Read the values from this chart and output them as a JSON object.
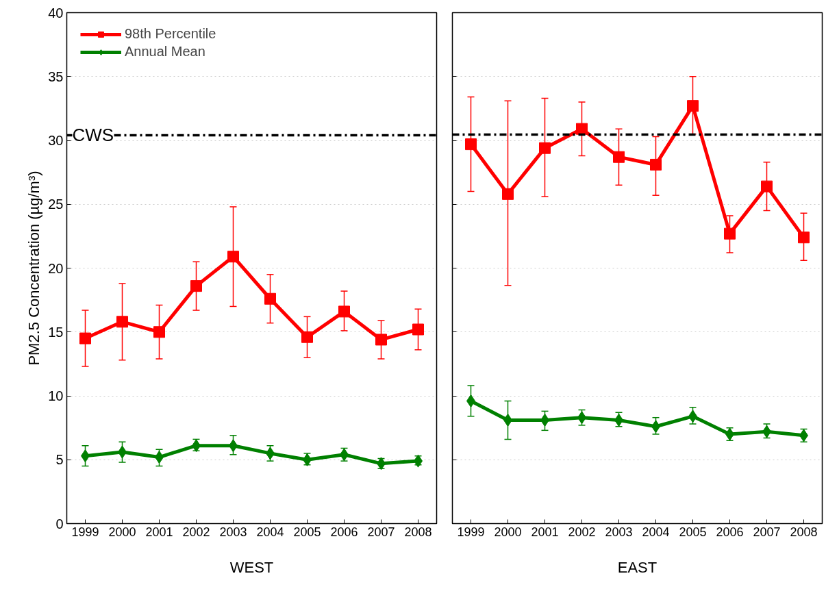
{
  "chart_data": [
    {
      "type": "line",
      "xlabel": "WEST",
      "ylabel": "PM2.5 Concentration (µg/m³)",
      "x": [
        1999,
        2000,
        2001,
        2002,
        2003,
        2004,
        2005,
        2006,
        2007,
        2008
      ],
      "xlim": [
        1998.5,
        2008.5
      ],
      "xticks": [
        1999,
        2000,
        2001,
        2002,
        2003,
        2004,
        2005,
        2006,
        2007,
        2008
      ],
      "ylim": [
        0,
        40
      ],
      "yticks": [
        0,
        5,
        10,
        15,
        20,
        25,
        30,
        35,
        40
      ],
      "grid": "y",
      "legend": "top left",
      "line_style": "solid",
      "series": [
        {
          "name": "98th Percentile",
          "color": "#ff0000",
          "marker": "square",
          "values": [
            14.5,
            15.8,
            15.0,
            18.6,
            20.9,
            17.6,
            14.6,
            16.6,
            14.4,
            15.2
          ],
          "errors": [
            [
              12.3,
              16.7
            ],
            [
              12.8,
              18.8
            ],
            [
              12.9,
              17.1
            ],
            [
              16.7,
              20.5
            ],
            [
              17.0,
              24.8
            ],
            [
              15.7,
              19.5
            ],
            [
              13.0,
              16.2
            ],
            [
              15.1,
              18.2
            ],
            [
              12.9,
              15.9
            ],
            [
              13.6,
              16.8
            ]
          ]
        },
        {
          "name": "Annual Mean",
          "color": "#008000",
          "marker": "diamond",
          "values": [
            5.3,
            5.6,
            5.2,
            6.1,
            6.1,
            5.5,
            5.0,
            5.4,
            4.7,
            4.9
          ],
          "errors": [
            [
              4.5,
              6.1
            ],
            [
              4.8,
              6.4
            ],
            [
              4.5,
              5.8
            ],
            [
              5.7,
              6.6
            ],
            [
              5.4,
              6.9
            ],
            [
              4.9,
              6.1
            ],
            [
              4.6,
              5.5
            ],
            [
              4.9,
              5.9
            ],
            [
              4.3,
              5.1
            ],
            [
              4.6,
              5.3
            ]
          ]
        }
      ],
      "ref_lines": [
        {
          "axis": "y",
          "value": 30.4,
          "label": "CWS",
          "color": "#000000",
          "line_style": "dashdot"
        }
      ]
    },
    {
      "type": "line",
      "xlabel": "EAST",
      "x": [
        1999,
        2000,
        2001,
        2002,
        2003,
        2004,
        2005,
        2006,
        2007,
        2008
      ],
      "xlim": [
        1998.5,
        2008.5
      ],
      "xticks": [
        1999,
        2000,
        2001,
        2002,
        2003,
        2004,
        2005,
        2006,
        2007,
        2008
      ],
      "ylim": [
        0,
        40
      ],
      "yticks": [
        0,
        5,
        10,
        15,
        20,
        25,
        30,
        35,
        40
      ],
      "grid": "y",
      "tick_labels": "x",
      "line_style": "solid",
      "series": [
        {
          "color": "#ff0000",
          "marker": "square",
          "values": [
            29.7,
            25.8,
            29.4,
            30.9,
            28.7,
            28.1,
            32.7,
            22.7,
            26.4,
            22.4
          ],
          "errors": [
            [
              26.0,
              33.4
            ],
            [
              18.65,
              33.1
            ],
            [
              25.6,
              33.3
            ],
            [
              28.8,
              33.0
            ],
            [
              26.5,
              30.9
            ],
            [
              25.7,
              30.3
            ],
            [
              30.5,
              35.0
            ],
            [
              21.2,
              24.1
            ],
            [
              24.5,
              28.3
            ],
            [
              20.6,
              24.3
            ]
          ]
        },
        {
          "color": "#008000",
          "marker": "diamond",
          "values": [
            9.6,
            8.1,
            8.1,
            8.3,
            8.1,
            7.6,
            8.4,
            7.0,
            7.2,
            6.9
          ],
          "errors": [
            [
              8.4,
              10.8
            ],
            [
              6.6,
              9.6
            ],
            [
              7.3,
              8.8
            ],
            [
              7.7,
              8.9
            ],
            [
              7.6,
              8.7
            ],
            [
              7.0,
              8.3
            ],
            [
              7.8,
              9.1
            ],
            [
              6.5,
              7.5
            ],
            [
              6.7,
              7.8
            ],
            [
              6.4,
              7.4
            ]
          ]
        }
      ],
      "ref_lines": [
        {
          "axis": "y",
          "value": 30.45,
          "color": "#000000",
          "line_style": "dashdot"
        }
      ]
    }
  ]
}
